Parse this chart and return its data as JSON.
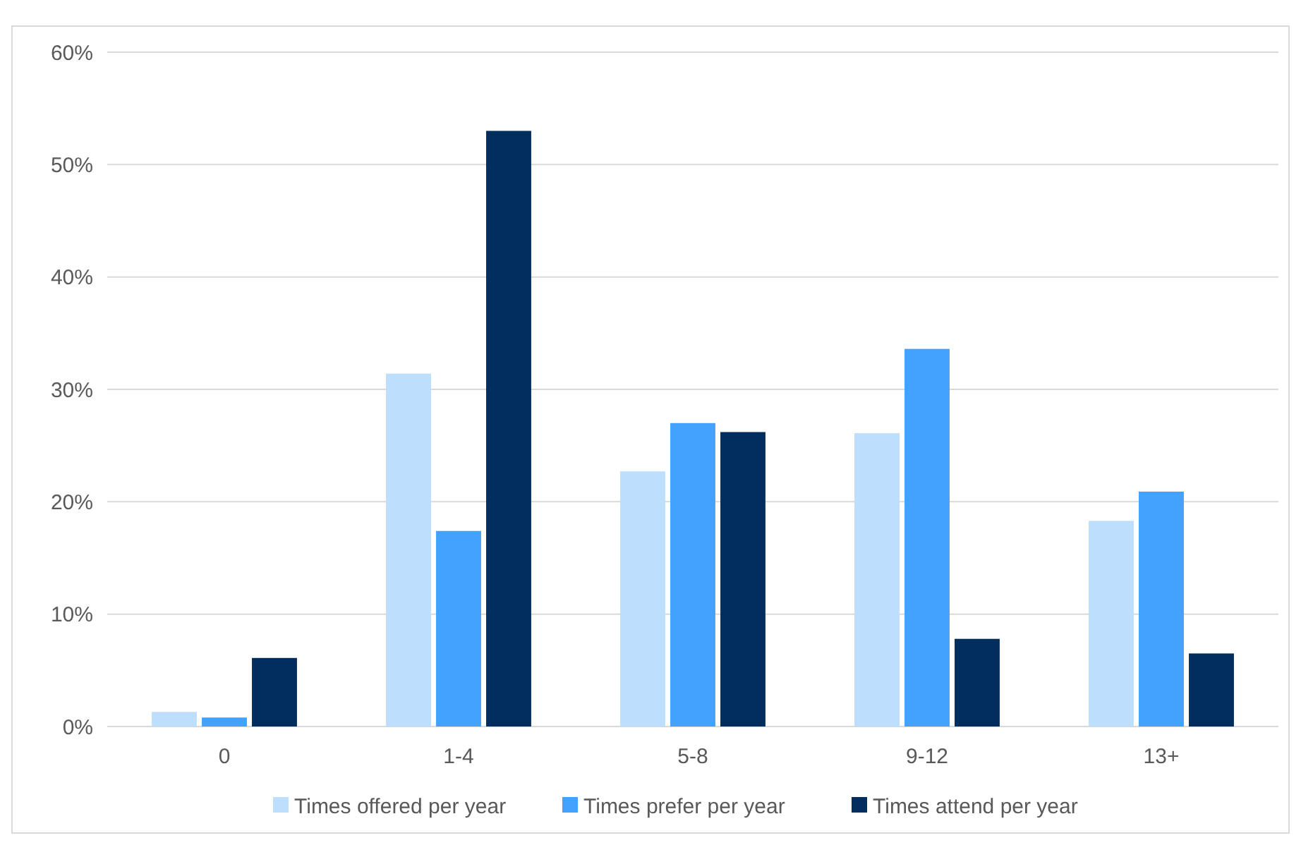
{
  "chart_data": {
    "type": "bar",
    "categories": [
      "0",
      "1-4",
      "5-8",
      "9-12",
      "13+"
    ],
    "series": [
      {
        "name": "Times offered per year",
        "color": "#bddefd",
        "values": [
          1.3,
          31.4,
          22.7,
          26.1,
          18.3
        ]
      },
      {
        "name": "Times prefer per year",
        "color": "#42a2fe",
        "values": [
          0.8,
          17.4,
          27.0,
          33.6,
          20.9
        ]
      },
      {
        "name": "Times attend per year",
        "color": "#022e5e",
        "values": [
          6.1,
          53.0,
          26.2,
          7.8,
          6.5
        ]
      }
    ],
    "ylim": [
      0,
      60
    ],
    "yticks": [
      {
        "value": 0,
        "label": "0%"
      },
      {
        "value": 10,
        "label": "10%"
      },
      {
        "value": 20,
        "label": "20%"
      },
      {
        "value": 30,
        "label": "30%"
      },
      {
        "value": 40,
        "label": "40%"
      },
      {
        "value": 50,
        "label": "50%"
      },
      {
        "value": 60,
        "label": "60%"
      }
    ],
    "grid": "y",
    "legend": "bottom"
  }
}
